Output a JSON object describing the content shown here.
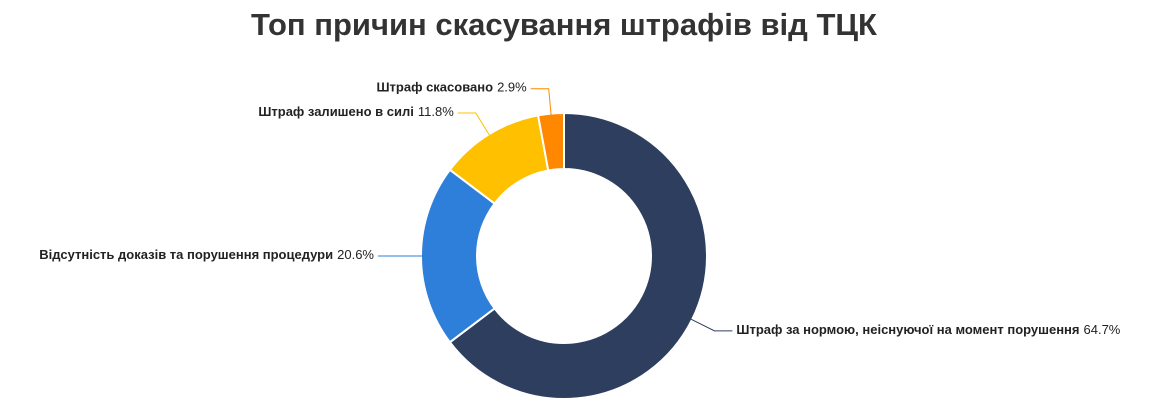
{
  "chart_data": {
    "type": "donut",
    "title": "Топ причин скасування штрафів від ТЦК",
    "categories": [
      "Штраф за нормою, неіснуючої на момент порушення",
      "Відсутність доказів та порушення процедури",
      "Штраф залишено в силі",
      "Штраф скасовано"
    ],
    "values": [
      64.7,
      20.6,
      11.8,
      2.9
    ],
    "value_labels": [
      "64.7%",
      "20.6%",
      "11.8%",
      "2.9%"
    ],
    "colors": [
      "#2e3e5e",
      "#2e7fd9",
      "#ffc000",
      "#ff8800"
    ]
  }
}
